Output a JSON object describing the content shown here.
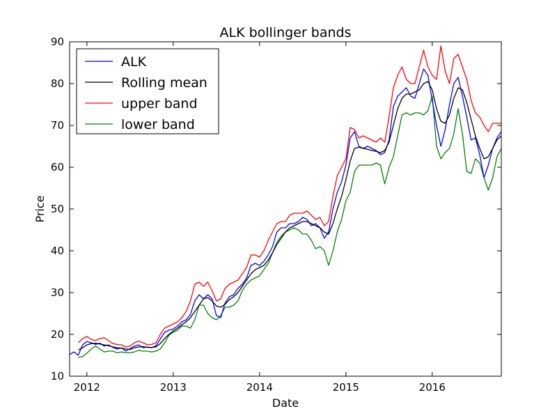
{
  "chart_data": {
    "type": "line",
    "title": "ALK bollinger bands",
    "xlabel": "Date",
    "ylabel": "Price",
    "xlim": [
      2011.8,
      2016.8
    ],
    "ylim": [
      10,
      90
    ],
    "x_ticks": [
      2012,
      2013,
      2014,
      2015,
      2016
    ],
    "x_tick_labels": [
      "2012",
      "2013",
      "2014",
      "2015",
      "2016"
    ],
    "y_ticks": [
      10,
      20,
      30,
      40,
      50,
      60,
      70,
      80,
      90
    ],
    "y_tick_labels": [
      "10",
      "20",
      "30",
      "40",
      "50",
      "60",
      "70",
      "80",
      "90"
    ],
    "grid": false,
    "legend_position": "top-left",
    "series": [
      {
        "name": "ALK",
        "color": "#0000ff",
        "x": [
          2011.8,
          2011.85,
          2011.9,
          2011.95,
          2012.0,
          2012.05,
          2012.1,
          2012.15,
          2012.2,
          2012.25,
          2012.3,
          2012.35,
          2012.4,
          2012.45,
          2012.5,
          2012.55,
          2012.6,
          2012.65,
          2012.7,
          2012.75,
          2012.8,
          2012.85,
          2012.9,
          2012.95,
          2013.0,
          2013.05,
          2013.1,
          2013.15,
          2013.2,
          2013.25,
          2013.3,
          2013.35,
          2013.4,
          2013.45,
          2013.5,
          2013.55,
          2013.6,
          2013.65,
          2013.7,
          2013.75,
          2013.8,
          2013.85,
          2013.9,
          2013.95,
          2014.0,
          2014.05,
          2014.1,
          2014.15,
          2014.2,
          2014.25,
          2014.3,
          2014.35,
          2014.4,
          2014.45,
          2014.5,
          2014.55,
          2014.6,
          2014.65,
          2014.7,
          2014.75,
          2014.8,
          2014.85,
          2014.9,
          2014.95,
          2015.0,
          2015.05,
          2015.1,
          2015.15,
          2015.2,
          2015.25,
          2015.3,
          2015.35,
          2015.4,
          2015.45,
          2015.5,
          2015.55,
          2015.6,
          2015.65,
          2015.7,
          2015.75,
          2015.8,
          2015.85,
          2015.9,
          2015.95,
          2016.0,
          2016.05,
          2016.1,
          2016.15,
          2016.2,
          2016.25,
          2016.3,
          2016.35,
          2016.4,
          2016.45,
          2016.5,
          2016.55,
          2016.6,
          2016.65,
          2016.7,
          2016.75,
          2016.8
        ],
        "values": [
          15.2,
          15.8,
          15.0,
          17.5,
          18.3,
          18.0,
          17.6,
          17.9,
          17.2,
          17.5,
          16.9,
          16.5,
          16.8,
          16.0,
          16.6,
          17.2,
          17.5,
          16.8,
          17.0,
          16.8,
          17.3,
          18.9,
          20.5,
          21.0,
          21.3,
          22.0,
          23.0,
          23.5,
          24.8,
          28.0,
          29.5,
          28.5,
          29.5,
          28.5,
          24.5,
          24.0,
          27.5,
          29.0,
          29.5,
          31.0,
          32.0,
          33.5,
          36.5,
          37.0,
          36.5,
          37.5,
          39.0,
          41.0,
          44.5,
          45.5,
          45.5,
          46.5,
          46.5,
          47.0,
          48.0,
          47.5,
          46.0,
          46.5,
          45.5,
          43.0,
          44.5,
          50.0,
          54.0,
          56.5,
          60.5,
          67.0,
          68.5,
          65.0,
          64.5,
          65.0,
          64.5,
          64.0,
          63.0,
          63.5,
          66.5,
          74.5,
          77.0,
          78.0,
          79.0,
          77.0,
          76.5,
          80.0,
          83.5,
          82.0,
          76.0,
          70.0,
          65.0,
          69.0,
          75.0,
          80.0,
          81.5,
          77.0,
          72.0,
          66.5,
          67.0,
          63.0,
          57.5,
          60.5,
          64.5,
          67.0,
          68.5
        ]
      },
      {
        "name": "Rolling mean",
        "color": "#000000",
        "x": [
          2011.9,
          2011.95,
          2012.0,
          2012.05,
          2012.1,
          2012.15,
          2012.2,
          2012.25,
          2012.3,
          2012.35,
          2012.4,
          2012.45,
          2012.5,
          2012.55,
          2012.6,
          2012.65,
          2012.7,
          2012.75,
          2012.8,
          2012.85,
          2012.9,
          2012.95,
          2013.0,
          2013.05,
          2013.1,
          2013.15,
          2013.2,
          2013.25,
          2013.3,
          2013.35,
          2013.4,
          2013.45,
          2013.5,
          2013.55,
          2013.6,
          2013.65,
          2013.7,
          2013.75,
          2013.8,
          2013.85,
          2013.9,
          2013.95,
          2014.0,
          2014.05,
          2014.1,
          2014.15,
          2014.2,
          2014.25,
          2014.3,
          2014.35,
          2014.4,
          2014.45,
          2014.5,
          2014.55,
          2014.6,
          2014.65,
          2014.7,
          2014.75,
          2014.8,
          2014.85,
          2014.9,
          2014.95,
          2015.0,
          2015.05,
          2015.1,
          2015.15,
          2015.2,
          2015.25,
          2015.3,
          2015.35,
          2015.4,
          2015.45,
          2015.5,
          2015.55,
          2015.6,
          2015.65,
          2015.7,
          2015.75,
          2015.8,
          2015.85,
          2015.9,
          2015.95,
          2016.0,
          2016.05,
          2016.1,
          2016.15,
          2016.2,
          2016.25,
          2016.3,
          2016.35,
          2016.4,
          2016.45,
          2016.5,
          2016.55,
          2016.6,
          2016.65,
          2016.7,
          2016.75,
          2016.8
        ],
        "values": [
          16.3,
          16.8,
          17.5,
          17.8,
          17.9,
          17.7,
          17.5,
          17.3,
          17.0,
          16.8,
          16.7,
          16.5,
          16.4,
          16.8,
          17.0,
          17.1,
          16.9,
          16.9,
          17.0,
          17.8,
          19.0,
          20.0,
          20.8,
          21.5,
          22.3,
          23.0,
          24.0,
          25.5,
          27.0,
          28.5,
          28.8,
          28.0,
          26.8,
          26.5,
          27.2,
          28.3,
          29.0,
          30.0,
          31.5,
          33.0,
          34.5,
          35.5,
          36.0,
          36.5,
          37.8,
          39.5,
          41.5,
          43.0,
          44.5,
          45.5,
          46.0,
          46.5,
          47.0,
          47.0,
          46.5,
          46.0,
          45.5,
          44.5,
          44.0,
          46.5,
          50.0,
          53.0,
          57.0,
          61.5,
          64.5,
          64.8,
          64.5,
          64.3,
          64.0,
          63.8,
          63.5,
          64.0,
          66.0,
          70.0,
          74.0,
          76.5,
          77.5,
          77.5,
          78.0,
          78.5,
          80.0,
          80.5,
          78.5,
          74.0,
          71.0,
          70.5,
          72.5,
          76.5,
          79.0,
          78.5,
          75.5,
          71.5,
          67.5,
          64.5,
          62.0,
          62.5,
          64.5,
          66.5,
          67.5
        ]
      },
      {
        "name": "upper band",
        "color": "#ff0000",
        "x": [
          2011.9,
          2011.95,
          2012.0,
          2012.05,
          2012.1,
          2012.15,
          2012.2,
          2012.25,
          2012.3,
          2012.35,
          2012.4,
          2012.45,
          2012.5,
          2012.55,
          2012.6,
          2012.65,
          2012.7,
          2012.75,
          2012.8,
          2012.85,
          2012.9,
          2012.95,
          2013.0,
          2013.05,
          2013.1,
          2013.15,
          2013.2,
          2013.25,
          2013.3,
          2013.35,
          2013.4,
          2013.45,
          2013.5,
          2013.55,
          2013.6,
          2013.65,
          2013.7,
          2013.75,
          2013.8,
          2013.85,
          2013.9,
          2013.95,
          2014.0,
          2014.05,
          2014.1,
          2014.15,
          2014.2,
          2014.25,
          2014.3,
          2014.35,
          2014.4,
          2014.45,
          2014.5,
          2014.55,
          2014.6,
          2014.65,
          2014.7,
          2014.75,
          2014.8,
          2014.85,
          2014.9,
          2014.95,
          2015.0,
          2015.05,
          2015.1,
          2015.15,
          2015.2,
          2015.25,
          2015.3,
          2015.35,
          2015.4,
          2015.45,
          2015.5,
          2015.55,
          2015.6,
          2015.65,
          2015.7,
          2015.75,
          2015.8,
          2015.85,
          2015.9,
          2015.95,
          2016.0,
          2016.05,
          2016.1,
          2016.15,
          2016.2,
          2016.25,
          2016.3,
          2016.35,
          2016.4,
          2016.45,
          2016.5,
          2016.55,
          2016.6,
          2016.65,
          2016.7,
          2016.75,
          2016.8
        ],
        "values": [
          18.0,
          19.0,
          19.5,
          18.8,
          18.5,
          19.0,
          19.2,
          18.5,
          17.8,
          17.6,
          17.5,
          17.0,
          17.2,
          18.0,
          18.4,
          18.0,
          17.5,
          17.6,
          18.0,
          20.0,
          21.5,
          22.0,
          22.5,
          23.0,
          24.0,
          25.5,
          28.0,
          32.0,
          32.5,
          31.5,
          32.5,
          30.5,
          28.0,
          28.5,
          31.0,
          32.0,
          32.5,
          33.0,
          34.5,
          36.0,
          39.0,
          39.0,
          38.5,
          40.0,
          42.5,
          44.5,
          46.5,
          47.0,
          47.0,
          48.5,
          49.0,
          49.0,
          49.0,
          49.5,
          48.5,
          47.5,
          48.0,
          46.0,
          47.0,
          53.0,
          58.0,
          60.0,
          62.0,
          69.5,
          69.0,
          67.0,
          67.5,
          67.0,
          66.5,
          66.0,
          67.0,
          66.0,
          72.0,
          79.0,
          82.0,
          84.0,
          81.0,
          80.0,
          80.0,
          84.0,
          88.0,
          84.0,
          82.0,
          81.0,
          89.0,
          83.0,
          80.0,
          86.0,
          87.0,
          84.0,
          81.0,
          76.0,
          73.0,
          72.0,
          70.0,
          68.5,
          70.5,
          70.5,
          70.5
        ]
      },
      {
        "name": "lower band",
        "color": "#008000",
        "x": [
          2011.9,
          2011.95,
          2012.0,
          2012.05,
          2012.1,
          2012.15,
          2012.2,
          2012.25,
          2012.3,
          2012.35,
          2012.4,
          2012.45,
          2012.5,
          2012.55,
          2012.6,
          2012.65,
          2012.7,
          2012.75,
          2012.8,
          2012.85,
          2012.9,
          2012.95,
          2013.0,
          2013.05,
          2013.1,
          2013.15,
          2013.2,
          2013.25,
          2013.3,
          2013.35,
          2013.4,
          2013.45,
          2013.5,
          2013.55,
          2013.6,
          2013.65,
          2013.7,
          2013.75,
          2013.8,
          2013.85,
          2013.9,
          2013.95,
          2014.0,
          2014.05,
          2014.1,
          2014.15,
          2014.2,
          2014.25,
          2014.3,
          2014.35,
          2014.4,
          2014.45,
          2014.5,
          2014.55,
          2014.6,
          2014.65,
          2014.7,
          2014.75,
          2014.8,
          2014.85,
          2014.9,
          2014.95,
          2015.0,
          2015.05,
          2015.1,
          2015.15,
          2015.2,
          2015.25,
          2015.3,
          2015.35,
          2015.4,
          2015.45,
          2015.5,
          2015.55,
          2015.6,
          2015.65,
          2015.7,
          2015.75,
          2015.8,
          2015.85,
          2015.9,
          2015.95,
          2016.0,
          2016.05,
          2016.1,
          2016.15,
          2016.2,
          2016.25,
          2016.3,
          2016.35,
          2016.4,
          2016.45,
          2016.5,
          2016.55,
          2016.6,
          2016.65,
          2016.7,
          2016.75,
          2016.8
        ],
        "values": [
          14.5,
          14.7,
          15.5,
          16.5,
          17.2,
          16.5,
          15.8,
          16.0,
          16.0,
          15.6,
          15.8,
          15.6,
          15.6,
          15.8,
          16.2,
          16.0,
          16.0,
          15.8,
          16.0,
          16.5,
          18.0,
          19.8,
          20.5,
          21.0,
          22.0,
          22.0,
          21.5,
          23.5,
          27.0,
          27.0,
          25.0,
          24.0,
          23.5,
          24.5,
          26.5,
          26.5,
          27.0,
          28.0,
          30.5,
          32.0,
          33.0,
          33.5,
          34.0,
          35.5,
          37.0,
          39.5,
          42.0,
          43.5,
          44.5,
          45.0,
          45.5,
          45.0,
          44.0,
          44.0,
          42.5,
          40.5,
          41.0,
          40.0,
          36.5,
          40.0,
          44.5,
          47.5,
          52.0,
          54.0,
          59.0,
          60.5,
          60.5,
          60.5,
          60.5,
          61.0,
          60.5,
          56.0,
          60.0,
          62.5,
          67.5,
          72.5,
          73.0,
          72.5,
          73.0,
          73.0,
          72.5,
          73.5,
          77.0,
          65.0,
          62.0,
          63.5,
          64.5,
          68.0,
          74.0,
          68.0,
          59.0,
          58.5,
          62.0,
          61.0,
          57.5,
          54.5,
          57.5,
          62.5,
          64.5
        ]
      }
    ]
  }
}
